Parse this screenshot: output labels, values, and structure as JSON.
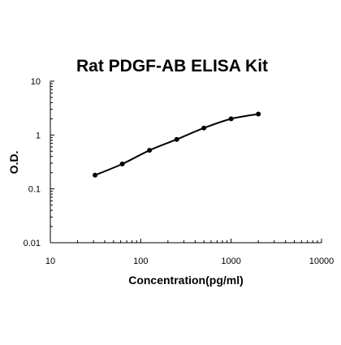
{
  "chart_data": {
    "type": "line",
    "title": "Rat PDGF-AB ELISA Kit",
    "xlabel": "Concentration(pg/ml)",
    "ylabel": "O.D.",
    "xscale": "log",
    "yscale": "log",
    "xlim": [
      10,
      10000
    ],
    "ylim": [
      0.01,
      10
    ],
    "xticks": [
      "10",
      "100",
      "1000",
      "10000"
    ],
    "yticks": [
      "0.01",
      "0.1",
      "1",
      "10"
    ],
    "grid": false,
    "legend": "none",
    "series": [
      {
        "x": [
          31.25,
          62.5,
          125,
          250,
          500,
          1000,
          2000
        ],
        "y": [
          0.18,
          0.29,
          0.52,
          0.83,
          1.35,
          2.0,
          2.45
        ]
      }
    ],
    "colors": {
      "line": "#000000",
      "marker": "#000000",
      "axis": "#000000"
    }
  }
}
